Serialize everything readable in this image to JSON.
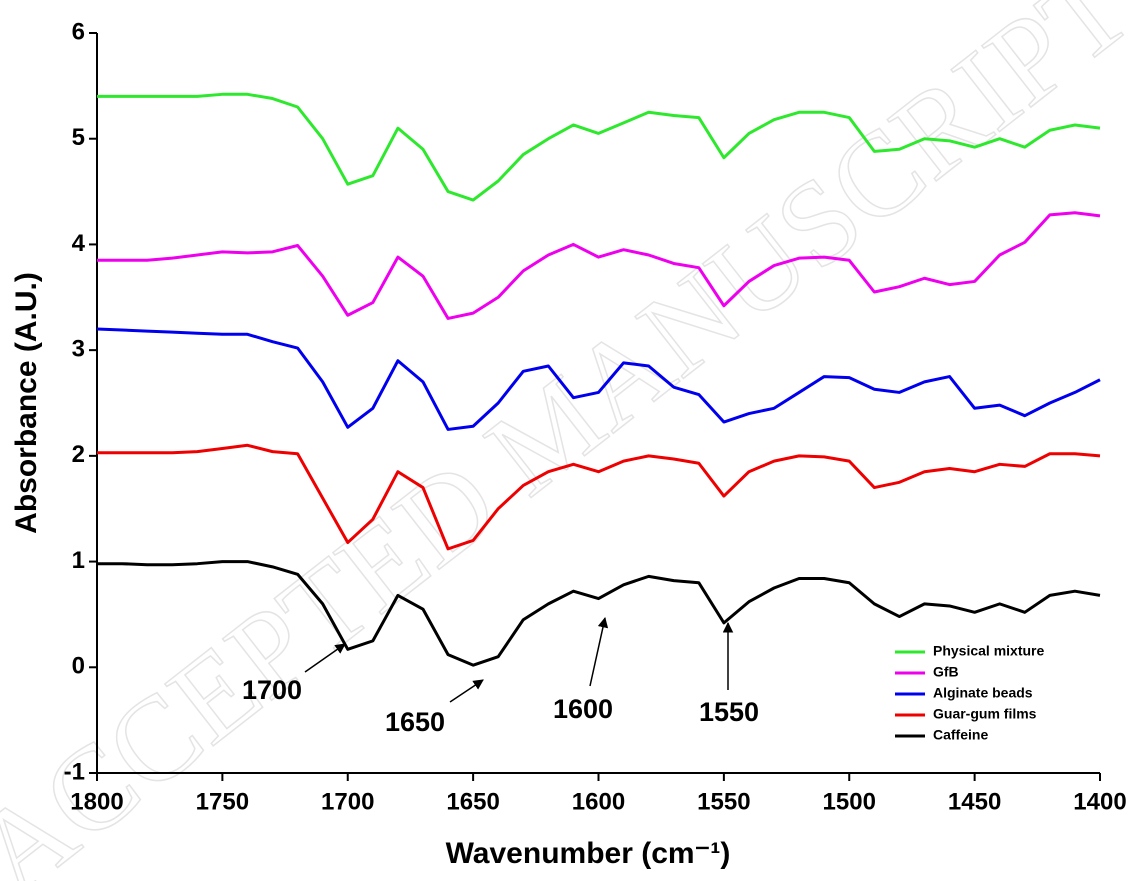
{
  "chart_data": {
    "type": "line",
    "xlabel": "Wavenumber (cm⁻¹)",
    "ylabel": "Absorbance (A.U.)",
    "watermark": "ACCEPTED MANUSCRIPT",
    "annotations": [
      "1700",
      "1650",
      "1600",
      "1550"
    ],
    "x": [
      1800,
      1790,
      1780,
      1770,
      1760,
      1750,
      1740,
      1730,
      1720,
      1710,
      1700,
      1690,
      1680,
      1670,
      1660,
      1650,
      1640,
      1630,
      1620,
      1610,
      1600,
      1590,
      1580,
      1570,
      1560,
      1550,
      1540,
      1530,
      1520,
      1510,
      1500,
      1490,
      1480,
      1470,
      1460,
      1450,
      1440,
      1430,
      1420,
      1410,
      1400
    ],
    "xlim": [
      1800,
      1400
    ],
    "xticks": [
      1800,
      1750,
      1700,
      1650,
      1600,
      1550,
      1500,
      1450,
      1400
    ],
    "ylim": [
      -1,
      6
    ],
    "yticks": [
      -1,
      0,
      1,
      2,
      3,
      4,
      5,
      6
    ],
    "legend": "lower right",
    "series": [
      {
        "name": "Physical mixture",
        "color": "#2ee82e",
        "values": [
          5.4,
          5.4,
          5.4,
          5.4,
          5.4,
          5.42,
          5.42,
          5.38,
          5.3,
          5.0,
          4.57,
          4.65,
          5.1,
          4.9,
          4.5,
          4.42,
          4.6,
          4.85,
          5.0,
          5.13,
          5.05,
          5.15,
          5.25,
          5.22,
          5.2,
          4.82,
          5.05,
          5.18,
          5.25,
          5.25,
          5.2,
          4.88,
          4.9,
          5.0,
          4.98,
          4.92,
          5.0,
          4.92,
          5.08,
          5.13,
          5.1
        ]
      },
      {
        "name": "GfB",
        "color": "#ee00ee",
        "values": [
          3.85,
          3.85,
          3.85,
          3.87,
          3.9,
          3.93,
          3.92,
          3.93,
          3.99,
          3.7,
          3.33,
          3.45,
          3.88,
          3.7,
          3.3,
          3.35,
          3.5,
          3.75,
          3.9,
          4.0,
          3.88,
          3.95,
          3.9,
          3.82,
          3.78,
          3.42,
          3.65,
          3.8,
          3.87,
          3.88,
          3.85,
          3.55,
          3.6,
          3.68,
          3.62,
          3.65,
          3.9,
          4.02,
          4.28,
          4.3,
          4.27
        ]
      },
      {
        "name": "Alginate beads",
        "color": "#0000ee",
        "values": [
          3.2,
          3.19,
          3.18,
          3.17,
          3.16,
          3.15,
          3.15,
          3.08,
          3.02,
          2.7,
          2.27,
          2.45,
          2.9,
          2.7,
          2.25,
          2.28,
          2.5,
          2.8,
          2.85,
          2.55,
          2.6,
          2.88,
          2.85,
          2.65,
          2.58,
          2.32,
          2.4,
          2.45,
          2.6,
          2.75,
          2.74,
          2.63,
          2.6,
          2.7,
          2.75,
          2.45,
          2.48,
          2.38,
          2.5,
          2.6,
          2.72
        ]
      },
      {
        "name": "Guar-gum films",
        "color": "#ee0000",
        "values": [
          2.03,
          2.03,
          2.03,
          2.03,
          2.04,
          2.07,
          2.1,
          2.04,
          2.02,
          1.6,
          1.18,
          1.4,
          1.85,
          1.7,
          1.12,
          1.2,
          1.5,
          1.72,
          1.85,
          1.92,
          1.85,
          1.95,
          2.0,
          1.97,
          1.93,
          1.62,
          1.85,
          1.95,
          2.0,
          1.99,
          1.95,
          1.7,
          1.75,
          1.85,
          1.88,
          1.85,
          1.92,
          1.9,
          2.02,
          2.02,
          2.0
        ]
      },
      {
        "name": "Caffeine",
        "color": "#000000",
        "values": [
          0.98,
          0.98,
          0.97,
          0.97,
          0.98,
          1.0,
          1.0,
          0.95,
          0.88,
          0.6,
          0.17,
          0.25,
          0.68,
          0.55,
          0.12,
          0.02,
          0.1,
          0.45,
          0.6,
          0.72,
          0.65,
          0.78,
          0.86,
          0.82,
          0.8,
          0.42,
          0.62,
          0.75,
          0.84,
          0.84,
          0.8,
          0.6,
          0.48,
          0.6,
          0.58,
          0.52,
          0.6,
          0.52,
          0.68,
          0.72,
          0.68
        ]
      }
    ]
  }
}
